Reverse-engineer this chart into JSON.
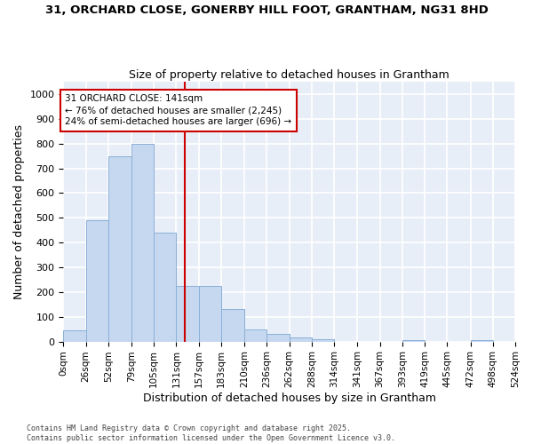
{
  "title1": "31, ORCHARD CLOSE, GONERBY HILL FOOT, GRANTHAM, NG31 8HD",
  "title2": "Size of property relative to detached houses in Grantham",
  "xlabel": "Distribution of detached houses by size in Grantham",
  "ylabel": "Number of detached properties",
  "bar_color": "#c5d8f0",
  "bar_edge_color": "#8ab0d8",
  "fig_bg_color": "#ffffff",
  "plot_bg_color": "#e8eef7",
  "grid_color": "#ffffff",
  "vline_x": 141,
  "vline_color": "#cc0000",
  "annotation_text": "31 ORCHARD CLOSE: 141sqm\n← 76% of detached houses are smaller (2,245)\n24% of semi-detached houses are larger (696) →",
  "annotation_box_facecolor": "#ffffff",
  "annotation_box_edgecolor": "#cc0000",
  "bin_edges": [
    0,
    26,
    52,
    79,
    105,
    131,
    157,
    183,
    210,
    236,
    262,
    288,
    314,
    341,
    367,
    393,
    419,
    445,
    472,
    498,
    524
  ],
  "bar_heights": [
    45,
    490,
    750,
    800,
    440,
    225,
    225,
    130,
    50,
    30,
    15,
    10,
    0,
    0,
    0,
    5,
    0,
    0,
    5,
    0
  ],
  "ylim": [
    0,
    1050
  ],
  "yticks": [
    0,
    100,
    200,
    300,
    400,
    500,
    600,
    700,
    800,
    900,
    1000
  ],
  "footer": "Contains HM Land Registry data © Crown copyright and database right 2025.\nContains public sector information licensed under the Open Government Licence v3.0.",
  "figsize": [
    6.0,
    5.0
  ],
  "dpi": 100
}
